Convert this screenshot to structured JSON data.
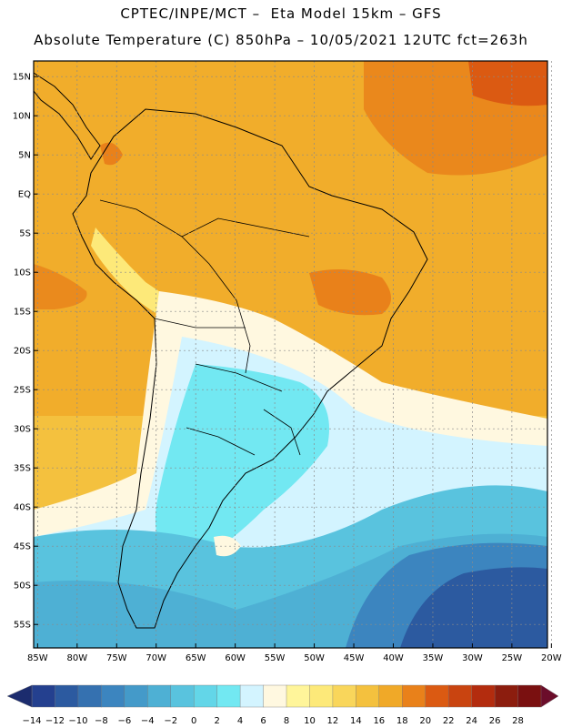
{
  "header": {
    "line1": "CPTEC/INPE/MCT –  Eta Model 15km – GFS",
    "line2": "Absolute Temperature (C) 850hPa – 10/05/2021 12UTC fct=263h"
  },
  "map": {
    "lat_ticks": [
      "15N",
      "10N",
      "5N",
      "EQ",
      "5S",
      "10S",
      "15S",
      "20S",
      "25S",
      "30S",
      "35S",
      "40S",
      "45S",
      "50S",
      "55S"
    ],
    "lon_ticks": [
      "85W",
      "80W",
      "75W",
      "70W",
      "65W",
      "60W",
      "55W",
      "50W",
      "45W",
      "40W",
      "35W",
      "30W",
      "25W",
      "20W"
    ],
    "lat_range": [
      17,
      -58
    ],
    "lon_range": [
      -85.5,
      -20.5
    ]
  },
  "colorbar": {
    "labels": [
      "-14",
      "-12",
      "-10",
      "-8",
      "-6",
      "-4",
      "-2",
      "0",
      "2",
      "4",
      "6",
      "8",
      "10",
      "12",
      "14",
      "16",
      "18",
      "20",
      "22",
      "24",
      "26",
      "28"
    ],
    "colors": [
      "#24408f",
      "#2c5aa0",
      "#3571b0",
      "#3c85bf",
      "#449ac9",
      "#4eb0d4",
      "#59c3de",
      "#63d6e8",
      "#72e8f2",
      "#d3f4ff",
      "#fff8e0",
      "#fff59a",
      "#fde979",
      "#f9d65b",
      "#f4c13e",
      "#f0a928",
      "#e9811a",
      "#db5a12",
      "#c94410",
      "#b32c0e",
      "#8c1d0e",
      "#7a1010"
    ]
  }
}
